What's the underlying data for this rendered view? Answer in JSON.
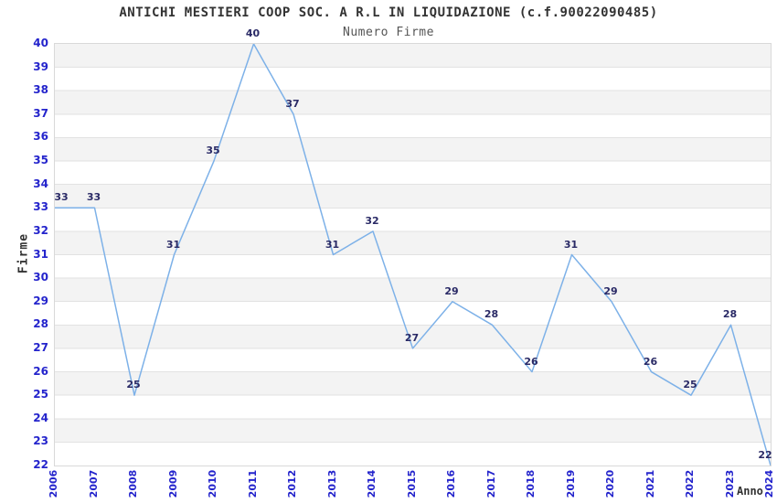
{
  "chart_data": {
    "type": "line",
    "title": "ANTICHI MESTIERI COOP SOC. A R.L IN LIQUIDAZIONE (c.f.90022090485)",
    "subtitle": "Numero Firme",
    "xlabel": "Anno",
    "ylabel": "Firme",
    "x": [
      2006,
      2007,
      2008,
      2009,
      2010,
      2011,
      2012,
      2013,
      2014,
      2015,
      2016,
      2017,
      2018,
      2019,
      2020,
      2021,
      2022,
      2023,
      2024
    ],
    "series": [
      {
        "name": "Numero Firme",
        "values": [
          33,
          33,
          25,
          31,
          35,
          40,
          37,
          31,
          32,
          27,
          29,
          28,
          26,
          31,
          29,
          26,
          25,
          28,
          22
        ]
      }
    ],
    "ylim": [
      22,
      40
    ],
    "y_tick_step": 1,
    "grid": "horizontal gridlines with alternating shaded bands",
    "legend": "none",
    "data_labels": "shown above each point",
    "colors": {
      "line": "#7db1e8",
      "band_fill": "#f3f3f3",
      "gridline": "#e2e2e2",
      "plot_border": "#d9d9d9",
      "tick_label": "#2424cc",
      "data_label": "#2a2a66",
      "title": "#333333",
      "subtitle": "#555555",
      "axis_label": "#333333",
      "background": "#ffffff"
    }
  }
}
